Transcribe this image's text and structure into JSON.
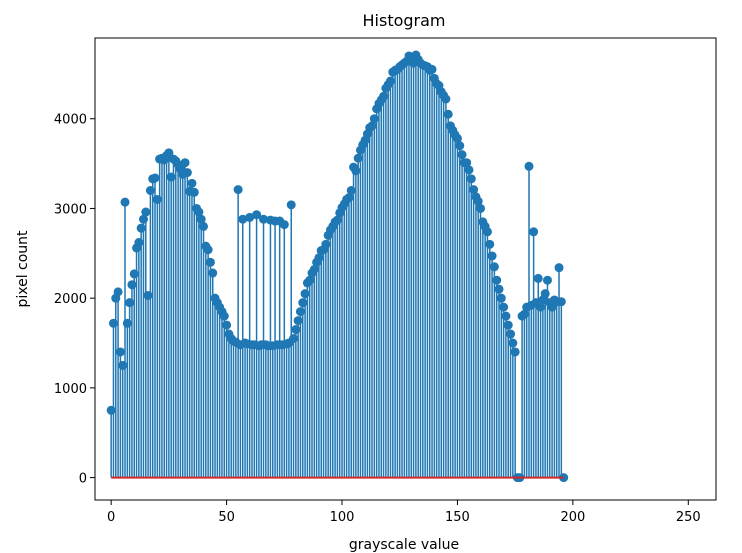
{
  "chart_data": {
    "type": "stem",
    "title": "Histogram",
    "xlabel": "grayscale value",
    "ylabel": "pixel count",
    "xlim": [
      -7,
      262
    ],
    "ylim": [
      -250,
      4900
    ],
    "xticks": [
      0,
      50,
      100,
      150,
      200,
      250
    ],
    "yticks": [
      0,
      1000,
      2000,
      3000,
      4000
    ],
    "grid": false,
    "legend": "none",
    "colors": {
      "stem": "#1f77b4",
      "baseline": "#d62728",
      "axes": "#000000"
    },
    "series": [
      {
        "x_start": 0,
        "values": [
          750,
          1720,
          2000,
          2070,
          1400,
          1250,
          3070,
          1720,
          1950,
          2150,
          2270,
          2560,
          2620,
          2780,
          2880,
          2960,
          2030,
          3200,
          3330,
          3340,
          3100,
          3550,
          3560,
          3540,
          3590,
          3620,
          3350,
          3550,
          3530,
          3490,
          3440,
          3380,
          3510,
          3400,
          3190,
          3280,
          3180,
          3000,
          2960,
          2880,
          2800,
          2580,
          2540,
          2400,
          2280,
          2000,
          1950,
          1900,
          1850,
          1800,
          1700,
          1600,
          1550,
          1520,
          1510,
          3210,
          1480,
          2880,
          1500,
          1490,
          2900,
          1480,
          1480,
          2930,
          1470,
          1480,
          2880,
          1480,
          1470,
          2870,
          1470,
          2860,
          1480,
          2860,
          1480,
          2820,
          1490,
          1500,
          3040,
          1550,
          1650,
          1750,
          1850,
          1950,
          2050,
          2170,
          2200,
          2280,
          2320,
          2400,
          2450,
          2530,
          2540,
          2600,
          2700,
          2760,
          2800,
          2850,
          2870,
          2950,
          3010,
          3050,
          3100,
          3120,
          3200,
          3460,
          3420,
          3560,
          3650,
          3710,
          3760,
          3830,
          3900,
          3920,
          4000,
          4110,
          4170,
          4210,
          4250,
          4340,
          4380,
          4420,
          4520,
          4540,
          4550,
          4580,
          4600,
          4620,
          4640,
          4700,
          4650,
          4620,
          4710,
          4660,
          4620,
          4600,
          4590,
          4580,
          4540,
          4550,
          4450,
          4390,
          4370,
          4300,
          4260,
          4220,
          4050,
          3920,
          3870,
          3820,
          3780,
          3700,
          3600,
          3510,
          3510,
          3430,
          3330,
          3210,
          3130,
          3080,
          3000,
          2850,
          2800,
          2740,
          2600,
          2470,
          2350,
          2200,
          2100,
          2000,
          1900,
          1800,
          1700,
          1600,
          1500,
          1400,
          0,
          0,
          1800,
          1820,
          1900,
          3470,
          1920,
          2740,
          1950,
          2220,
          1900,
          1980,
          2050,
          2200,
          1950,
          1900,
          1980,
          1960,
          2340,
          1960,
          0
        ]
      }
    ]
  }
}
